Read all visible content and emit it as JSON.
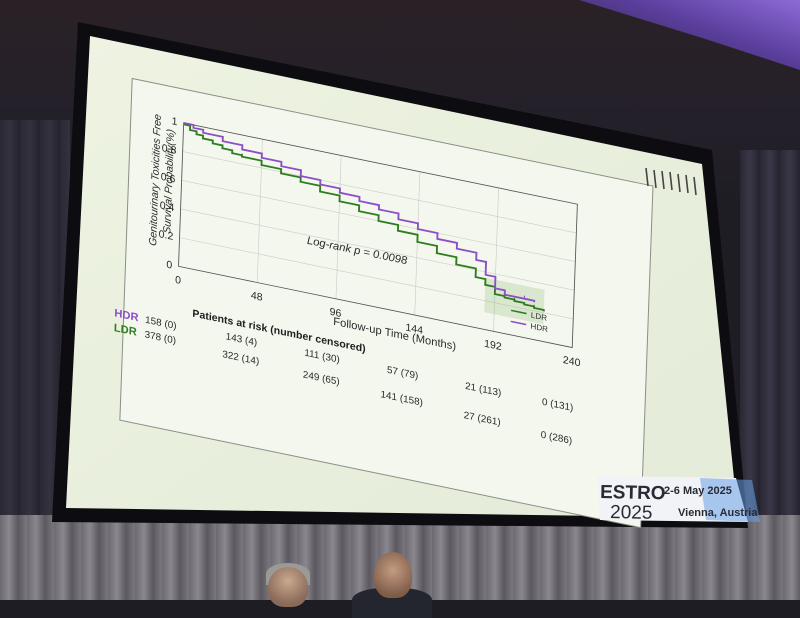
{
  "chart_data": {
    "type": "line",
    "ylabel": "Genitourinary Toxicities Free Survival Probability(%)",
    "xlabel": "Follow-up Time (Months)",
    "x_ticks": [
      0,
      48,
      96,
      144,
      192,
      240
    ],
    "y_ticks": [
      0,
      0.2,
      0.4,
      0.6,
      0.8,
      1
    ],
    "y_tick_labels": [
      "0",
      "0.2",
      "0.4",
      "0.6",
      "0.8",
      "1"
    ],
    "xlim": [
      0,
      240
    ],
    "ylim": [
      0,
      1
    ],
    "grid": true,
    "legend_position": "bottom-right",
    "annotation": "Log-rank p = 0.0098",
    "series": [
      {
        "name": "LDR",
        "color": "#2e7d1f",
        "x": [
          0,
          4,
          8,
          12,
          18,
          24,
          30,
          36,
          48,
          60,
          72,
          84,
          96,
          108,
          120,
          132,
          144,
          156,
          168,
          180,
          186,
          192,
          198,
          204,
          210,
          216,
          222
        ],
        "y": [
          0.99,
          0.96,
          0.94,
          0.92,
          0.9,
          0.88,
          0.86,
          0.85,
          0.82,
          0.79,
          0.76,
          0.72,
          0.68,
          0.64,
          0.6,
          0.56,
          0.51,
          0.46,
          0.41,
          0.35,
          0.31,
          0.26,
          0.25,
          0.24,
          0.23,
          0.22,
          0.21
        ]
      },
      {
        "name": "HDR",
        "color": "#8a4fc9",
        "x": [
          0,
          6,
          12,
          24,
          36,
          48,
          60,
          72,
          84,
          96,
          108,
          120,
          132,
          144,
          156,
          168,
          180,
          186,
          192,
          198,
          204,
          210,
          216
        ],
        "y": [
          1.0,
          0.98,
          0.96,
          0.93,
          0.9,
          0.87,
          0.84,
          0.8,
          0.77,
          0.74,
          0.71,
          0.68,
          0.64,
          0.6,
          0.56,
          0.52,
          0.47,
          0.38,
          0.3,
          0.27,
          0.27,
          0.27,
          0.26
        ]
      }
    ],
    "risk_table": {
      "title": "Patients at risk (number censored)",
      "rows": [
        {
          "label": "HDR",
          "color": "#8a4fc9",
          "cells": [
            "158 (0)",
            "143 (4)",
            "111 (30)",
            "57 (79)",
            "21 (113)",
            "0 (131)"
          ]
        },
        {
          "label": "LDR",
          "color": "#2e7d1f",
          "cells": [
            "378 (0)",
            "322 (14)",
            "249 (65)",
            "141 (158)",
            "27 (261)",
            "0 (286)"
          ]
        }
      ]
    }
  },
  "branding": {
    "logo_line1": "ESTRO",
    "logo_line2": "2025",
    "dates": "2-6 May 2025",
    "location": "Vienna, Austria",
    "accent_color": "#3a6fc4"
  }
}
